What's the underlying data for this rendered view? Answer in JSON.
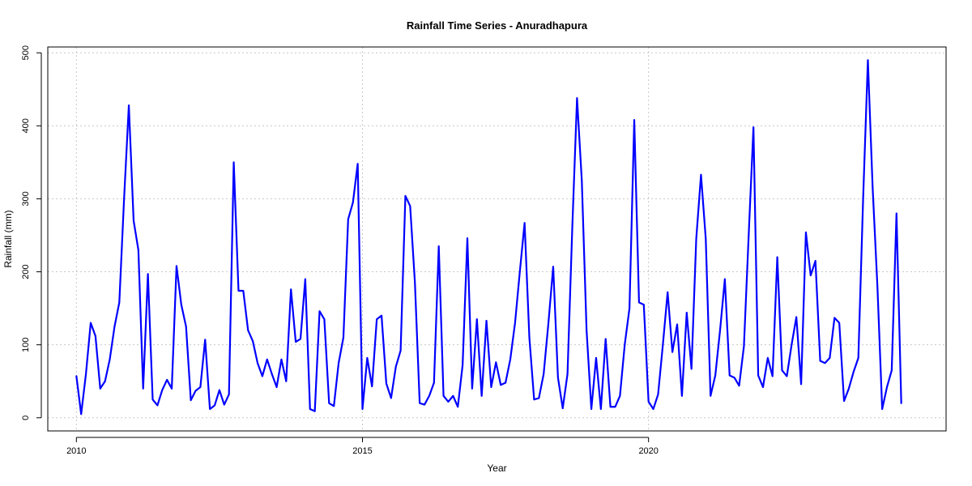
{
  "chart_data": {
    "type": "line",
    "title": "Rainfall Time Series - Anuradhapura",
    "xlabel": "Year",
    "ylabel": "Rainfall (mm)",
    "xlim": [
      2009.5,
      2025.2
    ],
    "ylim": [
      -18,
      508
    ],
    "x_ticks": [
      2010,
      2015,
      2020
    ],
    "y_ticks": [
      0,
      100,
      200,
      300,
      400,
      500
    ],
    "grid": true,
    "legend": "none",
    "series": [
      {
        "color": "#0000ff",
        "values": [
          57,
          5,
          60,
          130,
          112,
          40,
          50,
          80,
          125,
          158,
          300,
          428,
          270,
          230,
          40,
          197,
          25,
          17,
          38,
          52,
          40,
          208,
          155,
          125,
          24,
          37,
          42,
          107,
          12,
          17,
          38,
          18,
          32,
          350,
          174,
          174,
          120,
          105,
          75,
          57,
          80,
          60,
          42,
          80,
          50,
          176,
          104,
          108,
          190,
          12,
          9,
          146,
          135,
          20,
          16,
          75,
          110,
          272,
          295,
          348,
          12,
          82,
          43,
          135,
          140,
          47,
          27,
          70,
          92,
          304,
          290,
          185,
          20,
          18,
          30,
          48,
          235,
          30,
          22,
          30,
          15,
          72,
          246,
          40,
          135,
          30,
          133,
          42,
          76,
          45,
          48,
          80,
          130,
          200,
          267,
          110,
          25,
          27,
          60,
          130,
          207,
          55,
          13,
          60,
          260,
          438,
          325,
          120,
          12,
          82,
          12,
          108,
          15,
          15,
          30,
          100,
          150,
          408,
          158,
          155,
          22,
          12,
          32,
          100,
          172,
          90,
          128,
          30,
          144,
          67,
          245,
          333,
          245,
          30,
          58,
          120,
          190,
          58,
          55,
          44,
          98,
          250,
          398,
          58,
          42,
          82,
          57,
          220,
          65,
          57,
          100,
          138,
          46,
          254,
          195,
          215,
          78,
          75,
          82,
          137,
          130,
          23,
          40,
          63,
          82,
          300,
          490,
          315,
          180,
          12,
          42,
          65,
          280,
          20
        ]
      }
    ]
  }
}
